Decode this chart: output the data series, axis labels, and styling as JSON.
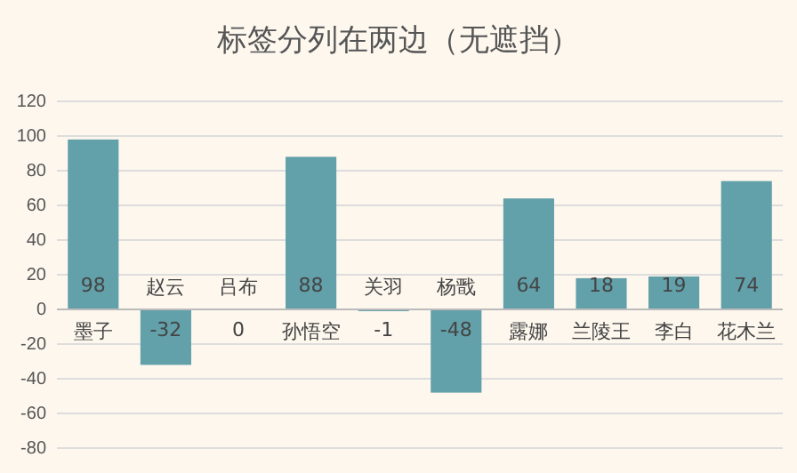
{
  "chart_data": {
    "type": "bar",
    "title": "标签分列在两边（无遮挡）",
    "categories": [
      "墨子",
      "赵云",
      "吕布",
      "孙悟空",
      "关羽",
      "杨戬",
      "露娜",
      "兰陵王",
      "李白",
      "花木兰"
    ],
    "values": [
      98,
      -32,
      0,
      88,
      -1,
      -48,
      64,
      18,
      19,
      74
    ],
    "color": "#62a0aa",
    "ylim": [
      -80,
      120
    ],
    "yticks": [
      -80,
      -60,
      -40,
      -20,
      0,
      20,
      40,
      60,
      80,
      100,
      120
    ],
    "grid": "y",
    "data_labels": true
  }
}
